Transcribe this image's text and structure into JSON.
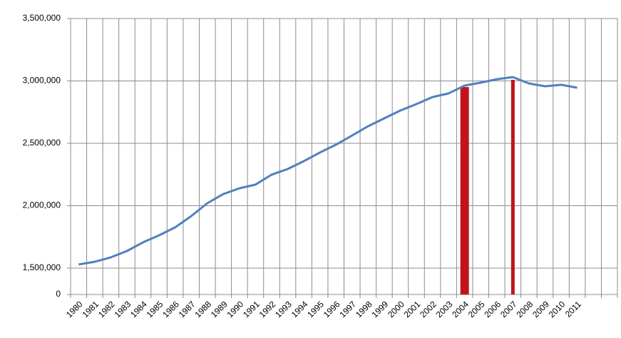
{
  "chart_data": {
    "type": "line",
    "categories": [
      "1980",
      "1981",
      "1982",
      "1983",
      "1984",
      "1985",
      "1986",
      "1987",
      "1988",
      "1989",
      "1990",
      "1991",
      "1992",
      "1993",
      "1994",
      "1995",
      "1996",
      "1997",
      "1998",
      "1999",
      "2000",
      "2001",
      "2002",
      "2003",
      "2004",
      "2005",
      "2006",
      "2007",
      "2008",
      "2009",
      "2010",
      "2011",
      null,
      null
    ],
    "series": [
      {
        "type": "line",
        "color": "#4f81bd",
        "values": [
          1529000,
          1551000,
          1586000,
          1637000,
          1706000,
          1763000,
          1826000,
          1917000,
          2020000,
          2094000,
          2140000,
          2169000,
          2249000,
          2294000,
          2357000,
          2426000,
          2489000,
          2563000,
          2637000,
          2700000,
          2763000,
          2814000,
          2871000,
          2900000,
          2963000,
          2986000,
          3014000,
          3031000,
          2980000,
          2957000,
          2969000,
          2946000,
          null,
          null
        ]
      },
      {
        "type": "bar",
        "color": "#c0141c",
        "values": [
          null,
          null,
          null,
          null,
          null,
          null,
          null,
          null,
          null,
          null,
          null,
          null,
          null,
          null,
          null,
          null,
          null,
          null,
          null,
          null,
          null,
          null,
          null,
          null,
          2951000,
          null,
          null,
          3009000,
          null,
          null,
          null,
          null,
          null,
          null
        ]
      }
    ],
    "ylim": [
      0,
      3500000
    ],
    "ybreak": [
      0,
      1500000
    ],
    "yticks": [
      {
        "value": 0,
        "label": "0"
      },
      {
        "value": 1500000,
        "label": "1,500,000"
      },
      {
        "value": 2000000,
        "label": "2,000,000"
      },
      {
        "value": 2500000,
        "label": "2,500,000"
      },
      {
        "value": 3000000,
        "label": "3,000,000"
      },
      {
        "value": 3500000,
        "label": "3,500,000"
      }
    ],
    "grid": true
  }
}
